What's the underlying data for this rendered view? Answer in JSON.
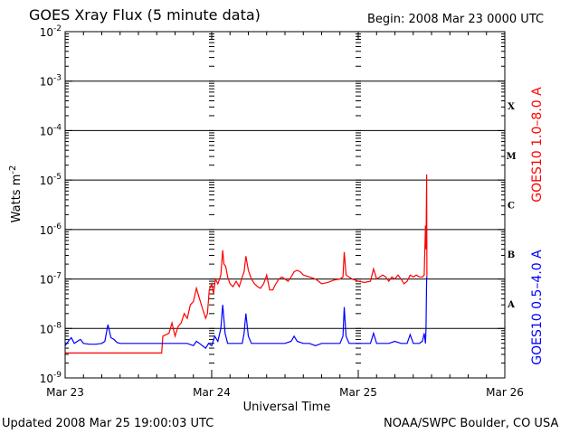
{
  "header": {
    "title": "GOES Xray Flux (5 minute data)",
    "begin": "Begin:  2008 Mar 23 0000 UTC"
  },
  "footer": {
    "updated": "Updated 2008 Mar 25 19:00:03 UTC",
    "credit": "NOAA/SWPC Boulder, CO USA"
  },
  "chart_data": {
    "type": "line",
    "title": "GOES Xray Flux (5 minute data)",
    "xlabel": "Universal Time",
    "ylabel_base": "Watts m",
    "ylabel_exp": "-2",
    "yscale": "log",
    "ylim": [
      1e-09,
      0.01
    ],
    "xlim": [
      0,
      72
    ],
    "x_unit": "hours since 2008 Mar 23 0000 UTC",
    "x_ticks": [
      {
        "value": 0,
        "label": "Mar 23"
      },
      {
        "value": 24,
        "label": "Mar 24"
      },
      {
        "value": 48,
        "label": "Mar 25"
      },
      {
        "value": 72,
        "label": "Mar 26"
      }
    ],
    "y_ticks": [
      {
        "exp": -9
      },
      {
        "exp": -8
      },
      {
        "exp": -7
      },
      {
        "exp": -6
      },
      {
        "exp": -5
      },
      {
        "exp": -4
      },
      {
        "exp": -3
      },
      {
        "exp": -2
      }
    ],
    "flare_classes": [
      {
        "label": "A",
        "exp": -8
      },
      {
        "label": "B",
        "exp": -7
      },
      {
        "label": "C",
        "exp": -6
      },
      {
        "label": "M",
        "exp": -5
      },
      {
        "label": "X",
        "exp": -4
      }
    ],
    "grid": true,
    "series": [
      {
        "name": "GOES10 1.0–8.0 A",
        "color": "#ff0000",
        "points": [
          [
            0,
            3.2e-09
          ],
          [
            3,
            3.2e-09
          ],
          [
            6,
            3.2e-09
          ],
          [
            9,
            3.2e-09
          ],
          [
            12,
            3.2e-09
          ],
          [
            15.8,
            3.2e-09
          ],
          [
            16,
            7e-09
          ],
          [
            17,
            8e-09
          ],
          [
            17.5,
            1.3e-08
          ],
          [
            18,
            7e-09
          ],
          [
            18.5,
            1.1e-08
          ],
          [
            19,
            1.3e-08
          ],
          [
            19.5,
            2e-08
          ],
          [
            20,
            1.6e-08
          ],
          [
            20.5,
            3e-08
          ],
          [
            21,
            3.5e-08
          ],
          [
            21.5,
            6.5e-08
          ],
          [
            22,
            4e-08
          ],
          [
            22.5,
            2.5e-08
          ],
          [
            23,
            1.6e-08
          ],
          [
            23.3,
            2e-08
          ],
          [
            23.6,
            6e-08
          ],
          [
            24,
            8e-08
          ],
          [
            24.3,
            5e-08
          ],
          [
            24.6,
            1e-07
          ],
          [
            25,
            8e-08
          ],
          [
            25.5,
            1.2e-07
          ],
          [
            25.8,
            3.8e-07
          ],
          [
            26,
            2e-07
          ],
          [
            26.3,
            1.8e-07
          ],
          [
            26.6,
            1.1e-07
          ],
          [
            27,
            8e-08
          ],
          [
            27.5,
            7e-08
          ],
          [
            28,
            9e-08
          ],
          [
            28.5,
            7e-08
          ],
          [
            29,
            1.1e-07
          ],
          [
            29.3,
            1.4e-07
          ],
          [
            29.6,
            2.9e-07
          ],
          [
            30,
            1.5e-07
          ],
          [
            30.5,
            1e-07
          ],
          [
            31,
            8e-08
          ],
          [
            31.5,
            7e-08
          ],
          [
            32,
            6.5e-08
          ],
          [
            32.5,
            8e-08
          ],
          [
            33,
            1.2e-07
          ],
          [
            33.5,
            6e-08
          ],
          [
            34,
            6e-08
          ],
          [
            34.5,
            8e-08
          ],
          [
            35,
            1e-07
          ],
          [
            35.5,
            1.1e-07
          ],
          [
            36,
            1e-07
          ],
          [
            36.5,
            9e-08
          ],
          [
            37,
            1.1e-07
          ],
          [
            37.5,
            1.4e-07
          ],
          [
            38,
            1.5e-07
          ],
          [
            38.5,
            1.4e-07
          ],
          [
            39,
            1.2e-07
          ],
          [
            40,
            1.1e-07
          ],
          [
            41,
            1e-07
          ],
          [
            41.5,
            9e-08
          ],
          [
            42,
            8e-08
          ],
          [
            43,
            8.5e-08
          ],
          [
            44,
            9.5e-08
          ],
          [
            45,
            1e-07
          ],
          [
            45.5,
            1.1e-07
          ],
          [
            45.7,
            3.5e-07
          ],
          [
            46,
            1.2e-07
          ],
          [
            47,
            1e-07
          ],
          [
            48,
            9e-08
          ],
          [
            49,
            8.5e-08
          ],
          [
            50,
            9e-08
          ],
          [
            50.5,
            1.6e-07
          ],
          [
            51,
            1e-07
          ],
          [
            52,
            1.2e-07
          ],
          [
            52.5,
            1.1e-07
          ],
          [
            53,
            9e-08
          ],
          [
            53.5,
            1.1e-07
          ],
          [
            54,
            1e-07
          ],
          [
            54.5,
            1.2e-07
          ],
          [
            55,
            1e-07
          ],
          [
            55.5,
            8e-08
          ],
          [
            56,
            9e-08
          ],
          [
            56.5,
            1.2e-07
          ],
          [
            57,
            1.1e-07
          ],
          [
            57.5,
            1.2e-07
          ],
          [
            58,
            1.1e-07
          ],
          [
            58.5,
            1.1e-07
          ],
          [
            58.8,
            1.2e-07
          ],
          [
            59,
            1.2e-06
          ],
          [
            59.1,
            4e-07
          ],
          [
            59.2,
            1.3e-05
          ],
          [
            59.25,
            1.1e-07
          ]
        ]
      },
      {
        "name": "GOES10 0.5–4.0 A",
        "color": "#0000ff",
        "points": [
          [
            0,
            4.5e-09
          ],
          [
            0.5,
            5.5e-09
          ],
          [
            1,
            6.5e-09
          ],
          [
            1.5,
            5e-09
          ],
          [
            2,
            5.5e-09
          ],
          [
            2.5,
            6e-09
          ],
          [
            3,
            5e-09
          ],
          [
            4,
            4.8e-09
          ],
          [
            5,
            4.8e-09
          ],
          [
            6,
            5e-09
          ],
          [
            6.5,
            5.5e-09
          ],
          [
            7,
            1.2e-08
          ],
          [
            7.5,
            6.5e-09
          ],
          [
            8,
            6e-09
          ],
          [
            8.5,
            5.2e-09
          ],
          [
            9,
            5e-09
          ],
          [
            10,
            5e-09
          ],
          [
            12,
            5e-09
          ],
          [
            14,
            5e-09
          ],
          [
            16,
            5e-09
          ],
          [
            18,
            5e-09
          ],
          [
            20,
            5e-09
          ],
          [
            21,
            4.5e-09
          ],
          [
            21.5,
            5.5e-09
          ],
          [
            22,
            5e-09
          ],
          [
            23,
            4e-09
          ],
          [
            23.5,
            5e-09
          ],
          [
            24,
            4.5e-09
          ],
          [
            24.5,
            7e-09
          ],
          [
            25,
            5.5e-09
          ],
          [
            25.5,
            1e-08
          ],
          [
            25.8,
            3e-08
          ],
          [
            26.2,
            8e-09
          ],
          [
            26.6,
            5e-09
          ],
          [
            27,
            5e-09
          ],
          [
            28,
            5e-09
          ],
          [
            29,
            5e-09
          ],
          [
            29.3,
            8e-09
          ],
          [
            29.6,
            2e-08
          ],
          [
            30,
            7e-09
          ],
          [
            30.5,
            5e-09
          ],
          [
            31,
            5e-09
          ],
          [
            32,
            5e-09
          ],
          [
            33,
            5e-09
          ],
          [
            34,
            5e-09
          ],
          [
            35,
            5e-09
          ],
          [
            36,
            5e-09
          ],
          [
            37,
            5.5e-09
          ],
          [
            37.5,
            7e-09
          ],
          [
            38,
            5.5e-09
          ],
          [
            39,
            5e-09
          ],
          [
            40,
            5e-09
          ],
          [
            41,
            4.5e-09
          ],
          [
            42,
            5e-09
          ],
          [
            43,
            5e-09
          ],
          [
            44,
            5e-09
          ],
          [
            45,
            5e-09
          ],
          [
            45.5,
            7e-09
          ],
          [
            45.7,
            2.7e-08
          ],
          [
            46,
            7e-09
          ],
          [
            46.5,
            5e-09
          ],
          [
            47,
            5e-09
          ],
          [
            48,
            5e-09
          ],
          [
            49,
            5e-09
          ],
          [
            50,
            5e-09
          ],
          [
            50.5,
            8e-09
          ],
          [
            51,
            5e-09
          ],
          [
            52,
            5e-09
          ],
          [
            53,
            5e-09
          ],
          [
            54,
            5.5e-09
          ],
          [
            55,
            5e-09
          ],
          [
            56,
            5e-09
          ],
          [
            56.5,
            7.5e-09
          ],
          [
            57,
            5e-09
          ],
          [
            58,
            5e-09
          ],
          [
            58.5,
            5.5e-09
          ],
          [
            58.8,
            8e-09
          ],
          [
            59,
            5e-09
          ],
          [
            59.1,
            1e-08
          ],
          [
            59.2,
            1.1e-07
          ],
          [
            59.25,
            1e-07
          ]
        ]
      }
    ]
  }
}
